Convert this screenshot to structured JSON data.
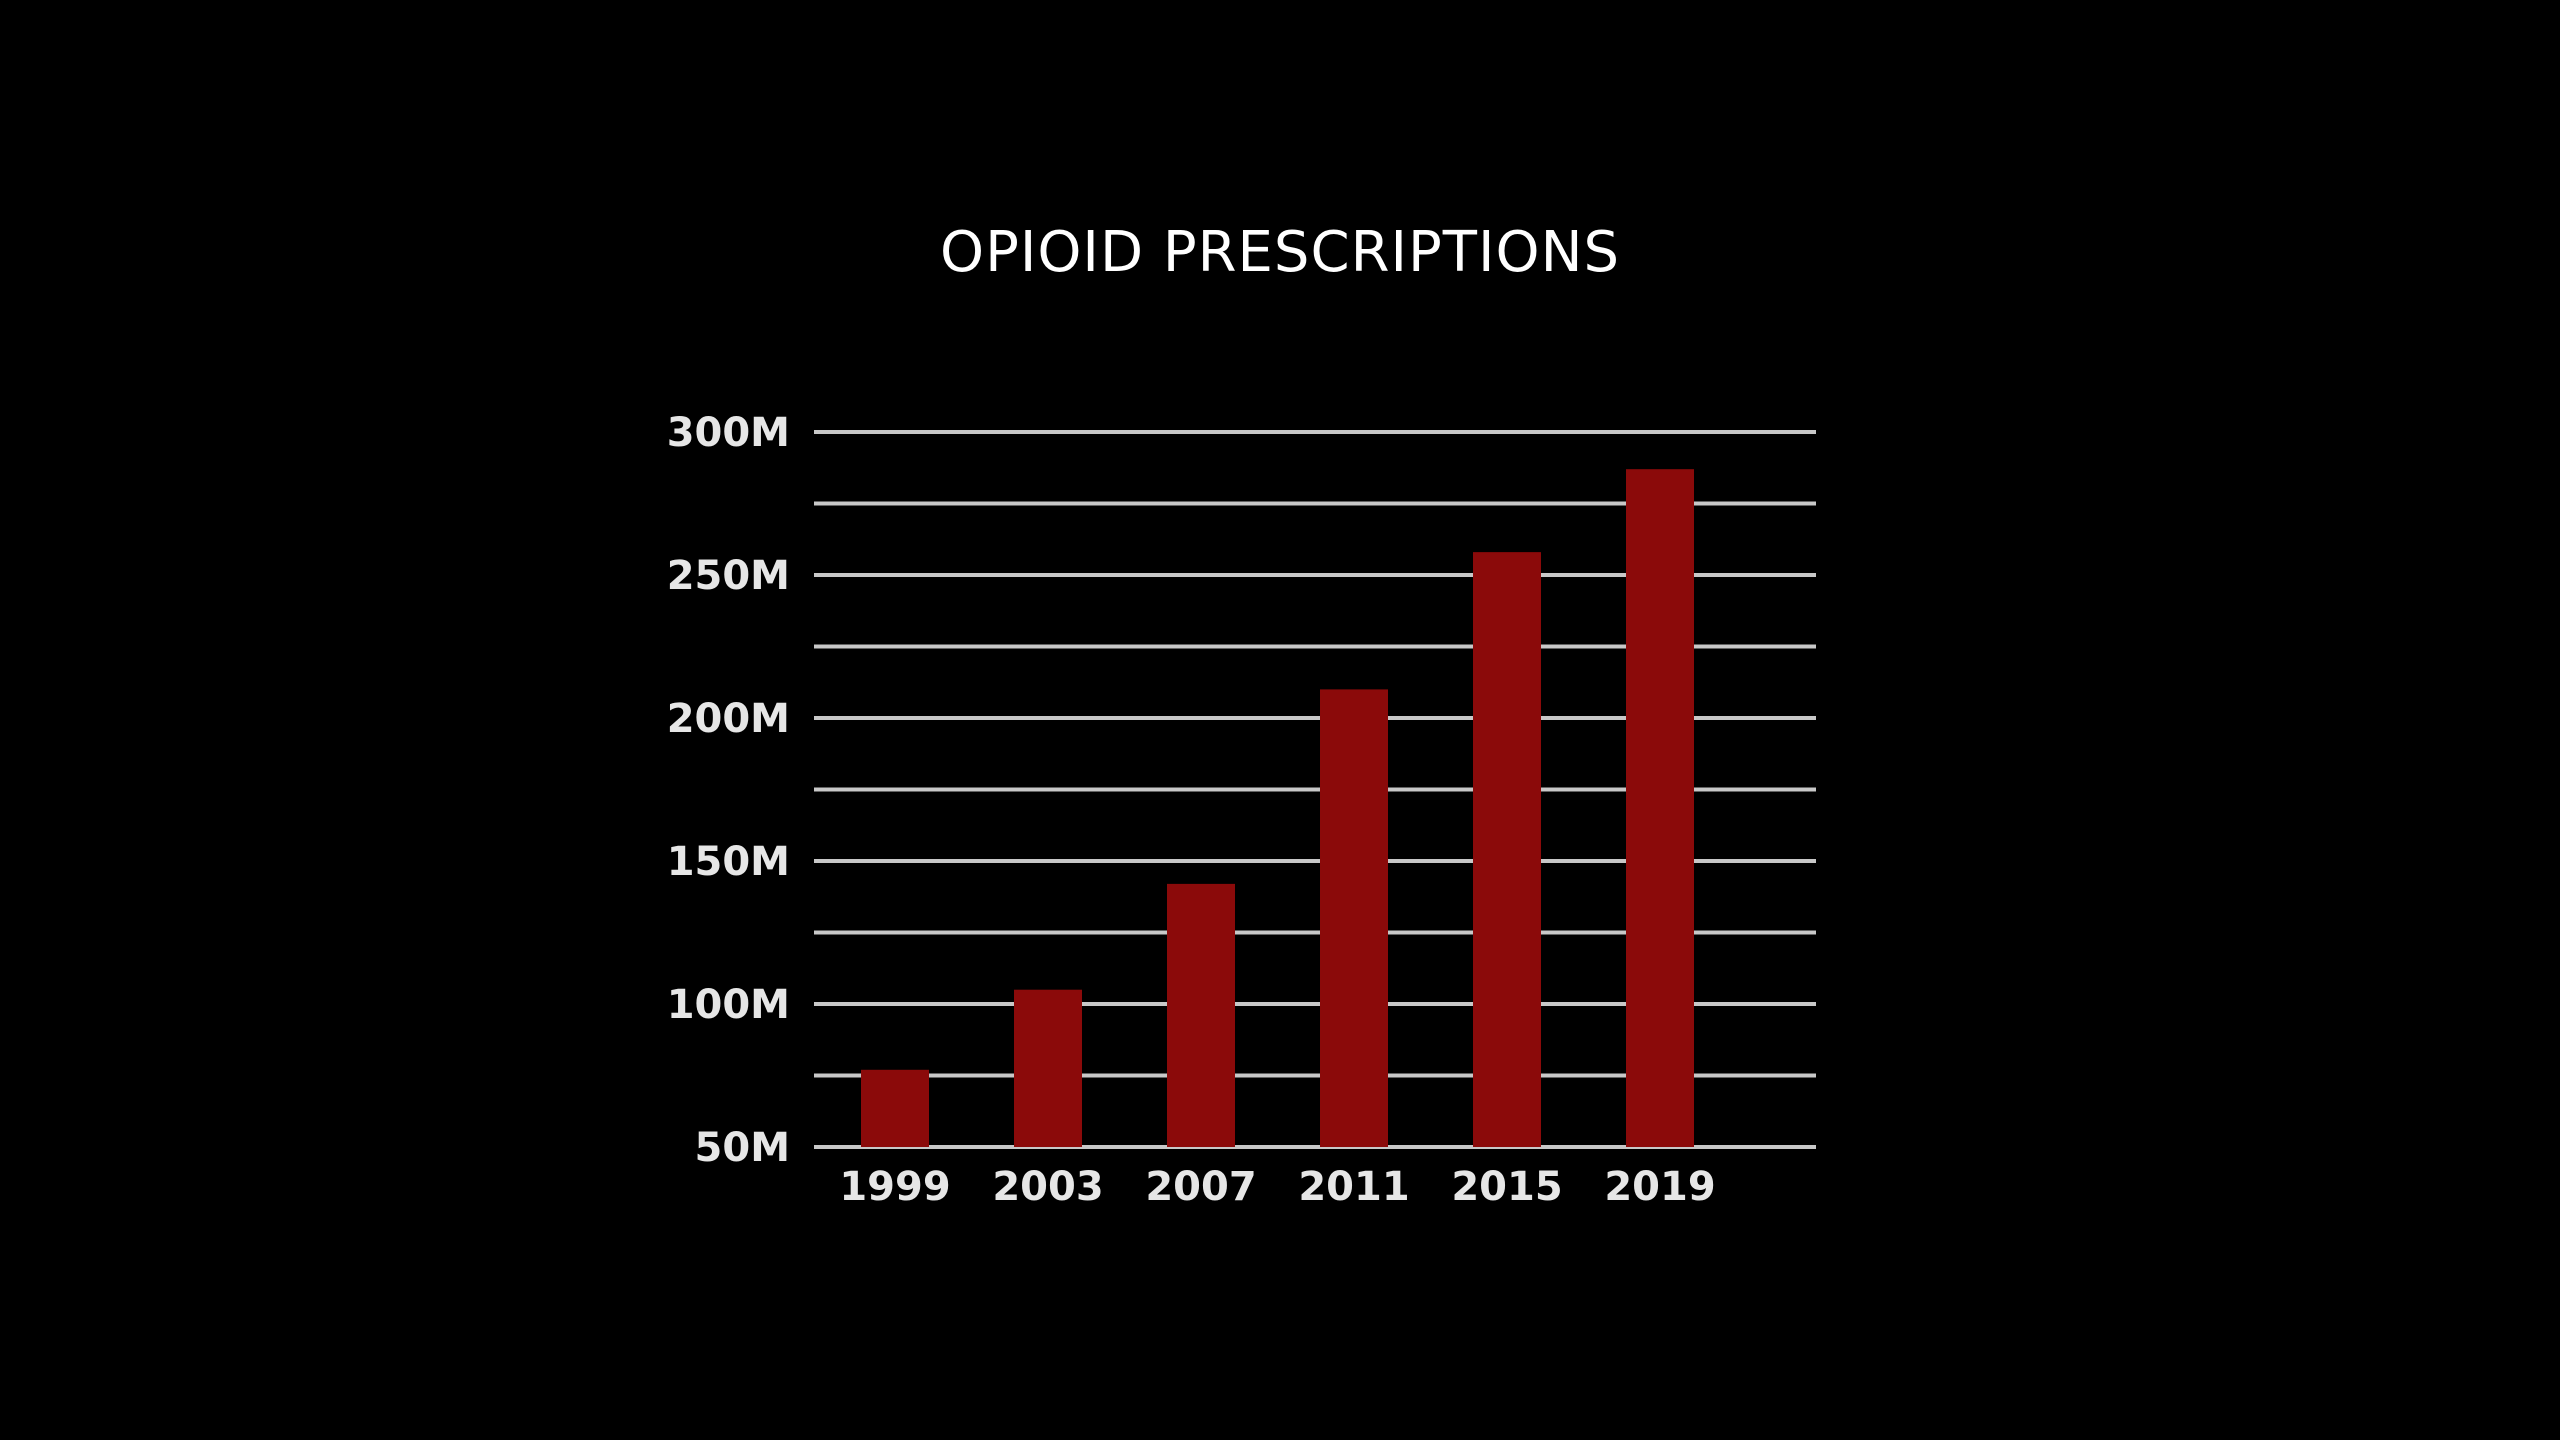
{
  "chart_data": {
    "type": "bar",
    "title": "OPIOID PRESCRIPTIONS",
    "xlabel": "",
    "ylabel": "",
    "categories": [
      "1999",
      "2003",
      "2007",
      "2011",
      "2015",
      "2019"
    ],
    "values": [
      77,
      105,
      142,
      210,
      258,
      287
    ],
    "ylim": [
      50,
      300
    ],
    "yticks": [
      50,
      100,
      150,
      200,
      250,
      300
    ],
    "ytick_labels": [
      "50M",
      "100M",
      "150M",
      "200M",
      "250M",
      "300M"
    ],
    "minor_gridlines": [
      75,
      125,
      175,
      225,
      275
    ],
    "grid": true,
    "legend": "none",
    "colors": {
      "background": "#000000",
      "bar": "#8b0a0a",
      "gridline": "#c8c8c8",
      "text": "#e6e6e6",
      "title": "#ffffff"
    }
  }
}
